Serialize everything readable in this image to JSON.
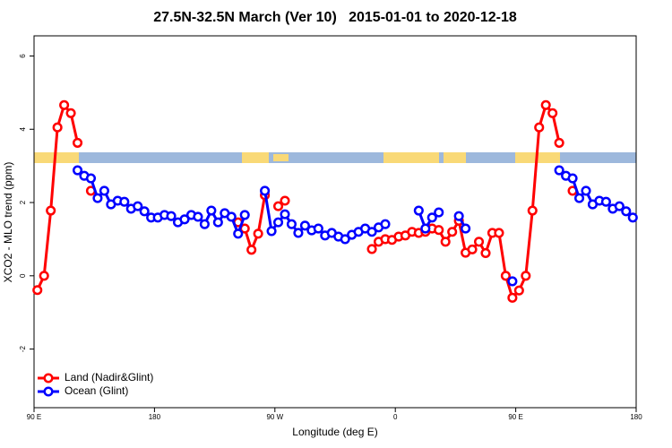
{
  "chart_data": {
    "type": "line",
    "title": "27.5N-32.5N March (Ver 10)   2015-01-01 to 2020-12-18",
    "x_label": "Longitude (deg E)",
    "y_label": "XCO2 - MLO trend (ppm)",
    "xlim": [
      90,
      540
    ],
    "xticks": [
      {
        "value": 90,
        "label": "90 E"
      },
      180,
      {
        "value": 270,
        "label": "90 W"
      },
      {
        "value": 360,
        "label": "0"
      },
      {
        "value": 450,
        "label": "90 E"
      },
      {
        "value": 540,
        "label": "180"
      }
    ],
    "ylim": [
      -3.6,
      6.55
    ],
    "yticks": [
      -2,
      0,
      2,
      4,
      6
    ],
    "legend": "bottom-left",
    "series": [
      {
        "name": "Land (Nadir&Glint)",
        "color": "#ff0000",
        "x": [
          92.5,
          97.5,
          102.5,
          107.5,
          112.5,
          117.5,
          122.5,
          127.5,
          132.5,
          137.5,
          242.5,
          247.5,
          252.5,
          257.5,
          262.5,
          267.5,
          272.5,
          277.5,
          282.5,
          342.5,
          347.5,
          352.5,
          357.5,
          362.5,
          367.5,
          372.5,
          377.5,
          382.5,
          387.5,
          392.5,
          397.5,
          402.5,
          407.5,
          412.5,
          417.5,
          422.5,
          427.5,
          432.5,
          437.5,
          442.5,
          447.5,
          452.5,
          457.5,
          462.5,
          467.5,
          472.5,
          477.5,
          482.5,
          487.5,
          492.5
        ],
        "values": [
          -0.39,
          0,
          1.78,
          4.05,
          4.66,
          4.44,
          3.63,
          null,
          2.32,
          null,
          1.46,
          1.29,
          0.71,
          1.15,
          2.2,
          null,
          1.9,
          2.05,
          null,
          0.73,
          0.93,
          1.0,
          0.98,
          1.07,
          1.1,
          1.2,
          1.17,
          1.2,
          1.29,
          1.25,
          0.93,
          1.2,
          1.5,
          0.63,
          0.72,
          0.93,
          0.62,
          1.17,
          1.17,
          0,
          -0.6,
          -0.4,
          0,
          1.78,
          4.05,
          4.66,
          4.44,
          3.63,
          null,
          2.32
        ]
      },
      {
        "name": "Ocean (Glint)",
        "color": "#0000ff",
        "x": [
          122.5,
          127.5,
          132.5,
          137.5,
          142.5,
          147.5,
          152.5,
          157.5,
          162.5,
          167.5,
          172.5,
          177.5,
          182.5,
          187.5,
          192.5,
          197.5,
          202.5,
          207.5,
          212.5,
          217.5,
          222.5,
          227.5,
          232.5,
          237.5,
          242.5,
          247.5,
          252.5,
          262.5,
          267.5,
          272.5,
          277.5,
          282.5,
          287.5,
          292.5,
          297.5,
          302.5,
          307.5,
          312.5,
          317.5,
          322.5,
          327.5,
          332.5,
          337.5,
          342.5,
          347.5,
          352.5,
          357.5,
          377.5,
          382.5,
          387.5,
          392.5,
          397.5,
          407.5,
          412.5,
          417.5,
          447.5,
          452.5,
          482.5,
          487.5,
          492.5,
          497.5,
          502.5,
          507.5,
          512.5,
          517.5,
          522.5,
          527.5,
          532.5,
          537.5
        ],
        "values": [
          2.88,
          2.73,
          2.66,
          2.12,
          2.32,
          1.95,
          2.05,
          2.02,
          1.83,
          1.9,
          1.76,
          1.59,
          1.59,
          1.66,
          1.63,
          1.46,
          1.54,
          1.66,
          1.61,
          1.41,
          1.78,
          1.46,
          1.71,
          1.61,
          1.15,
          1.66,
          null,
          2.32,
          1.22,
          1.46,
          1.68,
          1.41,
          1.17,
          1.37,
          1.24,
          1.29,
          1.1,
          1.17,
          1.07,
          1.0,
          1.12,
          1.2,
          1.29,
          1.2,
          1.32,
          1.41,
          null,
          1.78,
          1.29,
          1.59,
          1.73,
          null,
          1.63,
          1.29,
          null,
          -0.15,
          null,
          2.88,
          2.73,
          2.66,
          2.12,
          2.32,
          1.95,
          2.05,
          2.02,
          1.83,
          1.9,
          1.76,
          1.59
        ]
      }
    ]
  }
}
